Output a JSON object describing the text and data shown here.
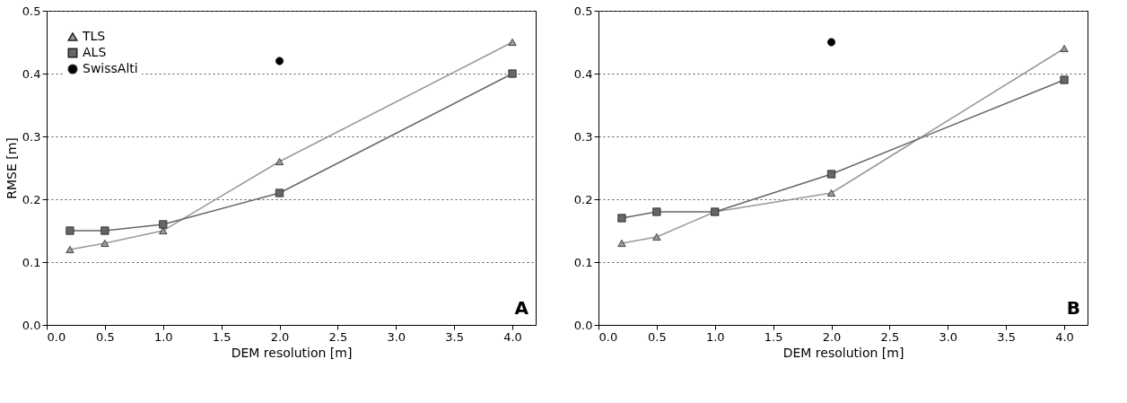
{
  "chart_data": [
    {
      "type": "line",
      "xlabel": "DEM resolution [m]",
      "ylabel": "RMSE [m]",
      "xlim": [
        0,
        4.2
      ],
      "ylim": [
        0,
        0.5
      ],
      "xticks": [
        {
          "value": 0,
          "label": "0.0"
        },
        {
          "value": 0.5,
          "label": "0.5"
        },
        {
          "value": 1,
          "label": "1.0"
        },
        {
          "value": 1.5,
          "label": "1.5"
        },
        {
          "value": 2,
          "label": "2.0"
        },
        {
          "value": 2.5,
          "label": "2.5"
        },
        {
          "value": 3,
          "label": "3.0"
        },
        {
          "value": 3.5,
          "label": "3.5"
        },
        {
          "value": 4,
          "label": "4.0"
        }
      ],
      "yticks": [
        {
          "value": 0,
          "label": "0.0"
        },
        {
          "value": 0.1,
          "label": "0.1"
        },
        {
          "value": 0.2,
          "label": "0.2"
        },
        {
          "value": 0.3,
          "label": "0.3"
        },
        {
          "value": 0.4,
          "label": "0.4"
        },
        {
          "value": 0.5,
          "label": "0.5"
        }
      ],
      "grid": "y",
      "legend": "top left",
      "annotations": [
        "A"
      ],
      "series": [
        {
          "name": "TLS",
          "marker": "triangle",
          "color": "#999999",
          "x": [
            0.2,
            0.5,
            1,
            2,
            4
          ],
          "values": [
            0.12,
            0.13,
            0.15,
            0.26,
            0.45
          ]
        },
        {
          "name": "ALS",
          "marker": "square",
          "color": "#666666",
          "x": [
            0.2,
            0.5,
            1,
            2,
            4
          ],
          "values": [
            0.15,
            0.15,
            0.16,
            0.21,
            0.4
          ]
        },
        {
          "name": "SwissAlti",
          "type": "scatter",
          "marker": "circle",
          "color": "#000000",
          "x": [
            2
          ],
          "values": [
            0.42
          ]
        }
      ]
    },
    {
      "type": "line",
      "xlabel": "DEM resolution [m]",
      "xlim": [
        0,
        4.2
      ],
      "ylim": [
        0,
        0.5
      ],
      "xticks": [
        {
          "value": 0,
          "label": "0.0"
        },
        {
          "value": 0.5,
          "label": "0.5"
        },
        {
          "value": 1,
          "label": "1.0"
        },
        {
          "value": 1.5,
          "label": "1.5"
        },
        {
          "value": 2,
          "label": "2.0"
        },
        {
          "value": 2.5,
          "label": "2.5"
        },
        {
          "value": 3,
          "label": "3.0"
        },
        {
          "value": 3.5,
          "label": "3.5"
        },
        {
          "value": 4,
          "label": "4.0"
        }
      ],
      "yticks": [
        {
          "value": 0,
          "label": "0.0"
        },
        {
          "value": 0.1,
          "label": "0.1"
        },
        {
          "value": 0.2,
          "label": "0.2"
        },
        {
          "value": 0.3,
          "label": "0.3"
        },
        {
          "value": 0.4,
          "label": "0.4"
        },
        {
          "value": 0.5,
          "label": "0.5"
        }
      ],
      "grid": "y",
      "legend": "top left",
      "annotations": [
        "B"
      ],
      "series": [
        {
          "name": "TLS",
          "marker": "triangle",
          "color": "#999999",
          "x": [
            0.2,
            0.5,
            1,
            2,
            4
          ],
          "values": [
            0.13,
            0.14,
            0.18,
            0.21,
            0.44
          ]
        },
        {
          "name": "ALS",
          "marker": "square",
          "color": "#666666",
          "x": [
            0.2,
            0.5,
            1,
            2,
            4
          ],
          "values": [
            0.17,
            0.18,
            0.18,
            0.24,
            0.39
          ]
        },
        {
          "name": "SwissAlti",
          "type": "scatter",
          "marker": "circle",
          "color": "#000000",
          "x": [
            2
          ],
          "values": [
            0.45
          ]
        }
      ]
    }
  ]
}
